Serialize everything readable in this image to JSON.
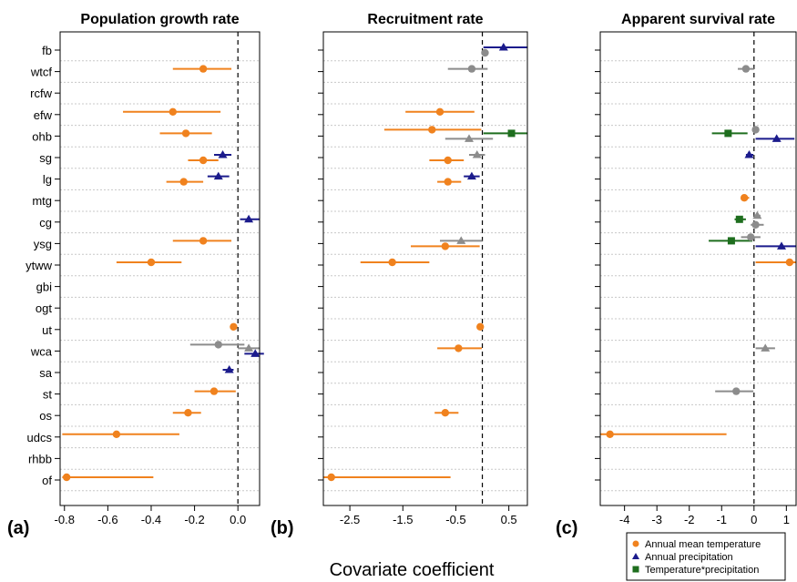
{
  "figure": {
    "xlabel": "Covariate coefficient",
    "legend": {
      "placement": "bottom-right",
      "entries": [
        {
          "label": "Annual mean temperature",
          "color": "#F0821E",
          "marker": "circle"
        },
        {
          "label": "Annual precipitation",
          "color": "#1B1B8C",
          "marker": "triangle"
        },
        {
          "label": "Temperature*precipitation",
          "color": "#1E6E1E",
          "marker": "square"
        }
      ]
    },
    "colors": {
      "temperature": "#F0821E",
      "precipitation": "#1B1B8C",
      "interaction": "#1E6E1E",
      "uncertain": "#8C8C8C"
    }
  },
  "chart_data": [
    {
      "type": "scatter",
      "panel_label": "(a)",
      "title": "Population growth rate",
      "xlim": [
        -0.82,
        0.1
      ],
      "xticks": [
        -0.8,
        -0.6,
        -0.4,
        -0.2,
        0.0
      ],
      "xtick_labels": [
        "-0.8",
        "-0.6",
        "-0.4",
        "-0.2",
        "0.0"
      ],
      "zero_line": true,
      "categories": [
        "fb",
        "wtcf",
        "rcfw",
        "efw",
        "ohb",
        "sg",
        "lg",
        "mtg",
        "cg",
        "ysg",
        "ytww",
        "gbi",
        "ogt",
        "ut",
        "wca",
        "sa",
        "st",
        "os",
        "udcs",
        "rhbb",
        "of"
      ],
      "points": [
        {
          "category": "wtcf",
          "covariate": "temperature",
          "significant": true,
          "estimate": -0.16,
          "lower": -0.3,
          "upper": -0.03
        },
        {
          "category": "efw",
          "covariate": "temperature",
          "significant": true,
          "estimate": -0.3,
          "lower": -0.53,
          "upper": -0.08
        },
        {
          "category": "ohb",
          "covariate": "temperature",
          "significant": true,
          "estimate": -0.24,
          "lower": -0.36,
          "upper": -0.12
        },
        {
          "category": "sg",
          "covariate": "precipitation",
          "significant": true,
          "estimate": -0.07,
          "lower": -0.11,
          "upper": -0.03
        },
        {
          "category": "sg",
          "covariate": "temperature",
          "significant": true,
          "estimate": -0.16,
          "lower": -0.23,
          "upper": -0.09
        },
        {
          "category": "lg",
          "covariate": "precipitation",
          "significant": true,
          "estimate": -0.09,
          "lower": -0.14,
          "upper": -0.04
        },
        {
          "category": "lg",
          "covariate": "temperature",
          "significant": true,
          "estimate": -0.25,
          "lower": -0.33,
          "upper": -0.16
        },
        {
          "category": "cg",
          "covariate": "precipitation",
          "significant": true,
          "estimate": 0.05,
          "lower": 0.01,
          "upper": 0.1
        },
        {
          "category": "ysg",
          "covariate": "temperature",
          "significant": true,
          "estimate": -0.16,
          "lower": -0.3,
          "upper": -0.03
        },
        {
          "category": "ytww",
          "covariate": "temperature",
          "significant": true,
          "estimate": -0.4,
          "lower": -0.56,
          "upper": -0.26
        },
        {
          "category": "ut",
          "covariate": "temperature",
          "significant": true,
          "estimate": -0.02,
          "lower": -0.03,
          "upper": -0.01
        },
        {
          "category": "wca",
          "covariate": "uncertain",
          "significant": false,
          "estimate": 0.05,
          "lower": 0.0,
          "upper": 0.1,
          "marker": "triangle"
        },
        {
          "category": "wca",
          "covariate": "precipitation",
          "significant": true,
          "estimate": 0.08,
          "lower": 0.03,
          "upper": 0.12
        },
        {
          "category": "wca",
          "covariate": "uncertain",
          "significant": false,
          "estimate": -0.09,
          "lower": -0.22,
          "upper": 0.03
        },
        {
          "category": "sa",
          "covariate": "precipitation",
          "significant": true,
          "estimate": -0.04,
          "lower": -0.07,
          "upper": -0.02
        },
        {
          "category": "st",
          "covariate": "temperature",
          "significant": true,
          "estimate": -0.11,
          "lower": -0.2,
          "upper": -0.01
        },
        {
          "category": "os",
          "covariate": "temperature",
          "significant": true,
          "estimate": -0.23,
          "lower": -0.3,
          "upper": -0.17
        },
        {
          "category": "udcs",
          "covariate": "temperature",
          "significant": true,
          "estimate": -0.56,
          "lower": -0.81,
          "upper": -0.27
        },
        {
          "category": "of",
          "covariate": "temperature",
          "significant": true,
          "estimate": -0.79,
          "lower": -0.81,
          "upper": -0.39
        }
      ]
    },
    {
      "type": "scatter",
      "panel_label": "(b)",
      "title": "Recruitment rate",
      "xlim": [
        -3.0,
        0.85
      ],
      "xticks": [
        -2.5,
        -1.5,
        -0.5,
        0.5
      ],
      "xtick_labels": [
        "-2.5",
        "-1.5",
        "-0.5",
        "0.5"
      ],
      "zero_line": true,
      "categories": [
        "fb",
        "wtcf",
        "rcfw",
        "efw",
        "ohb",
        "sg",
        "lg",
        "mtg",
        "cg",
        "ysg",
        "ytww",
        "gbi",
        "ogt",
        "ut",
        "wca",
        "sa",
        "st",
        "os",
        "udcs",
        "rhbb",
        "of"
      ],
      "points": [
        {
          "category": "fb",
          "covariate": "precipitation",
          "significant": true,
          "estimate": 0.4,
          "lower": 0.02,
          "upper": 0.85
        },
        {
          "category": "fb",
          "covariate": "uncertain",
          "significant": false,
          "estimate": 0.05,
          "lower": 0.0,
          "upper": 0.12
        },
        {
          "category": "wtcf",
          "covariate": "uncertain",
          "significant": false,
          "estimate": -0.2,
          "lower": -0.65,
          "upper": 0.1
        },
        {
          "category": "efw",
          "covariate": "temperature",
          "significant": true,
          "estimate": -0.8,
          "lower": -1.45,
          "upper": -0.15
        },
        {
          "category": "ohb",
          "covariate": "interaction",
          "significant": true,
          "estimate": 0.55,
          "lower": 0.02,
          "upper": 0.85
        },
        {
          "category": "ohb",
          "covariate": "uncertain",
          "significant": false,
          "estimate": -0.25,
          "lower": -0.7,
          "upper": 0.2,
          "marker": "triangle"
        },
        {
          "category": "ohb",
          "covariate": "temperature",
          "significant": true,
          "estimate": -0.95,
          "lower": -1.85,
          "upper": -0.02
        },
        {
          "category": "sg",
          "covariate": "uncertain",
          "significant": false,
          "estimate": -0.1,
          "lower": -0.25,
          "upper": 0.05,
          "marker": "triangle"
        },
        {
          "category": "sg",
          "covariate": "temperature",
          "significant": true,
          "estimate": -0.65,
          "lower": -1.0,
          "upper": -0.35
        },
        {
          "category": "lg",
          "covariate": "precipitation",
          "significant": true,
          "estimate": -0.2,
          "lower": -0.35,
          "upper": -0.05
        },
        {
          "category": "lg",
          "covariate": "temperature",
          "significant": true,
          "estimate": -0.65,
          "lower": -0.85,
          "upper": -0.4
        },
        {
          "category": "ysg",
          "covariate": "uncertain",
          "significant": false,
          "estimate": -0.4,
          "lower": -0.8,
          "upper": 0.0,
          "marker": "triangle"
        },
        {
          "category": "ysg",
          "covariate": "temperature",
          "significant": true,
          "estimate": -0.7,
          "lower": -1.35,
          "upper": -0.05
        },
        {
          "category": "ytww",
          "covariate": "temperature",
          "significant": true,
          "estimate": -1.7,
          "lower": -2.3,
          "upper": -1.0
        },
        {
          "category": "ut",
          "covariate": "temperature",
          "significant": true,
          "estimate": -0.04,
          "lower": -0.1,
          "upper": -0.01
        },
        {
          "category": "wca",
          "covariate": "temperature",
          "significant": true,
          "estimate": -0.45,
          "lower": -0.85,
          "upper": -0.01
        },
        {
          "category": "os",
          "covariate": "temperature",
          "significant": true,
          "estimate": -0.7,
          "lower": -0.9,
          "upper": -0.45
        },
        {
          "category": "of",
          "covariate": "temperature",
          "significant": true,
          "estimate": -2.85,
          "lower": -3.0,
          "upper": -0.6
        }
      ]
    },
    {
      "type": "scatter",
      "panel_label": "(c)",
      "title": "Apparent survival rate",
      "xlim": [
        -4.75,
        1.3
      ],
      "xticks": [
        -4,
        -3,
        -2,
        -1,
        0,
        1
      ],
      "xtick_labels": [
        "-4",
        "-3",
        "-2",
        "-1",
        "0",
        "1"
      ],
      "zero_line": true,
      "categories": [
        "fb",
        "wtcf",
        "rcfw",
        "efw",
        "ohb",
        "sg",
        "lg",
        "mtg",
        "cg",
        "ysg",
        "ytww",
        "gbi",
        "ogt",
        "ut",
        "wca",
        "sa",
        "st",
        "os",
        "udcs",
        "rhbb",
        "of"
      ],
      "points": [
        {
          "category": "wtcf",
          "covariate": "uncertain",
          "significant": false,
          "estimate": -0.25,
          "lower": -0.5,
          "upper": 0.0
        },
        {
          "category": "ohb",
          "covariate": "interaction",
          "significant": true,
          "estimate": -0.8,
          "lower": -1.3,
          "upper": -0.2
        },
        {
          "category": "ohb",
          "covariate": "precipitation",
          "significant": true,
          "estimate": 0.7,
          "lower": 0.05,
          "upper": 1.25
        },
        {
          "category": "ohb",
          "covariate": "uncertain",
          "significant": false,
          "estimate": 0.05,
          "lower": -0.05,
          "upper": 0.15
        },
        {
          "category": "sg",
          "covariate": "precipitation",
          "significant": true,
          "estimate": -0.15,
          "lower": -0.25,
          "upper": -0.02
        },
        {
          "category": "mtg",
          "covariate": "temperature",
          "significant": true,
          "estimate": -0.3,
          "lower": -0.4,
          "upper": -0.15
        },
        {
          "category": "cg",
          "covariate": "interaction",
          "significant": true,
          "estimate": -0.45,
          "lower": -0.6,
          "upper": -0.25
        },
        {
          "category": "cg",
          "covariate": "uncertain",
          "significant": false,
          "estimate": 0.05,
          "lower": -0.1,
          "upper": 0.3
        },
        {
          "category": "cg",
          "covariate": "uncertain",
          "significant": false,
          "estimate": 0.1,
          "lower": 0.0,
          "upper": 0.2,
          "marker": "triangle"
        },
        {
          "category": "ysg",
          "covariate": "interaction",
          "significant": true,
          "estimate": -0.7,
          "lower": -1.4,
          "upper": -0.05
        },
        {
          "category": "ysg",
          "covariate": "precipitation",
          "significant": true,
          "estimate": 0.85,
          "lower": 0.05,
          "upper": 1.3
        },
        {
          "category": "ysg",
          "covariate": "uncertain",
          "significant": false,
          "estimate": -0.1,
          "lower": -0.4,
          "upper": 0.2
        },
        {
          "category": "ytww",
          "covariate": "temperature",
          "significant": true,
          "estimate": 1.1,
          "lower": 0.05,
          "upper": 1.3
        },
        {
          "category": "wca",
          "covariate": "uncertain",
          "significant": false,
          "estimate": 0.35,
          "lower": 0.05,
          "upper": 0.65,
          "marker": "triangle"
        },
        {
          "category": "st",
          "covariate": "uncertain",
          "significant": false,
          "estimate": -0.55,
          "lower": -1.2,
          "upper": -0.02
        },
        {
          "category": "udcs",
          "covariate": "temperature",
          "significant": true,
          "estimate": -4.45,
          "lower": -4.75,
          "upper": -0.85
        }
      ]
    }
  ]
}
